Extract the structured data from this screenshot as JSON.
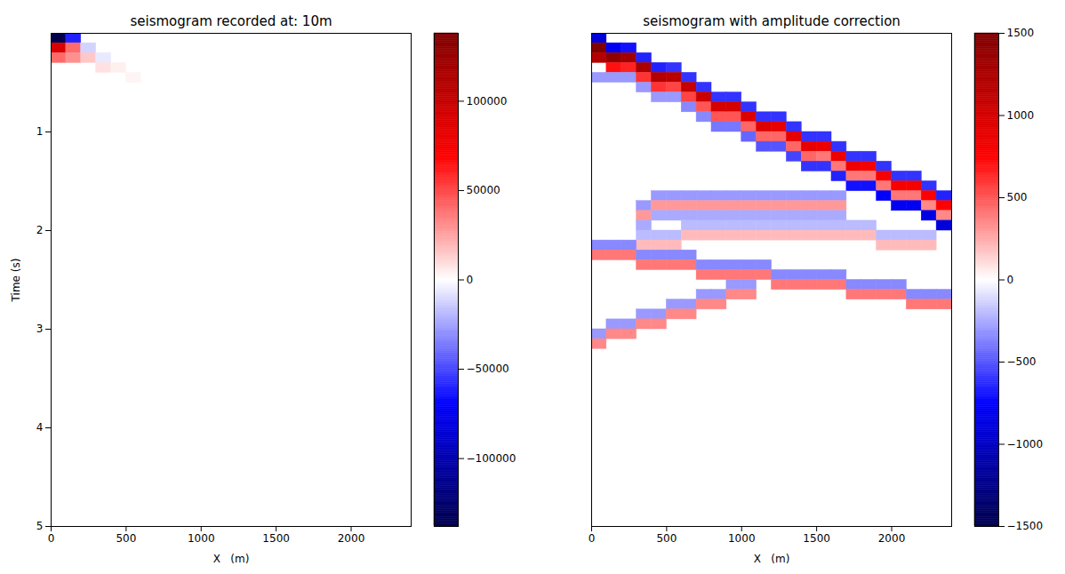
{
  "chart_data": [
    {
      "type": "heatmap",
      "title": "seismogram recorded at: 10m",
      "xlabel": "X   (m)",
      "ylabel": "Time (s)",
      "xlim": [
        0,
        2400
      ],
      "xticks": [
        0,
        500,
        1000,
        1500,
        2000
      ],
      "ylim": [
        0,
        5
      ],
      "yticks": [
        1,
        2,
        3,
        4,
        5
      ],
      "cell_width": 100,
      "cell_height": 0.1,
      "cells": [
        [
          0,
          0.0,
          -138000
        ],
        [
          0,
          0.1,
          90000
        ],
        [
          0,
          0.2,
          40000
        ],
        [
          100,
          0.0,
          -60000
        ],
        [
          100,
          0.1,
          40000
        ],
        [
          100,
          0.2,
          30000
        ],
        [
          200,
          0.1,
          -12000
        ],
        [
          200,
          0.2,
          15000
        ],
        [
          300,
          0.2,
          -6000
        ],
        [
          300,
          0.3,
          8000
        ],
        [
          400,
          0.3,
          4000
        ],
        [
          500,
          0.4,
          3000
        ]
      ],
      "colorbar": {
        "range": [
          -138000,
          138000
        ],
        "ticks": [
          -100000,
          -50000,
          0,
          50000,
          100000
        ]
      }
    },
    {
      "type": "heatmap",
      "title": "seismogram with amplitude correction",
      "xlabel": "X   (m)",
      "xlim": [
        0,
        2400
      ],
      "xticks": [
        0,
        500,
        1000,
        1500,
        2000
      ],
      "ylim": [
        0,
        5
      ],
      "tick_labels": "x",
      "cell_width": 100,
      "cell_height": 0.1,
      "cells": [
        [
          0,
          0.0,
          -900
        ],
        [
          0,
          0.1,
          1500
        ],
        [
          0,
          0.2,
          1200
        ],
        [
          0,
          0.4,
          -300
        ],
        [
          100,
          0.1,
          -800
        ],
        [
          100,
          0.2,
          1400
        ],
        [
          100,
          0.3,
          700
        ],
        [
          100,
          0.4,
          -300
        ],
        [
          200,
          0.1,
          -700
        ],
        [
          200,
          0.2,
          1300
        ],
        [
          200,
          0.3,
          650
        ],
        [
          200,
          0.4,
          -300
        ],
        [
          300,
          0.2,
          -650
        ],
        [
          300,
          0.3,
          1250
        ],
        [
          300,
          0.4,
          600
        ],
        [
          300,
          0.5,
          -300
        ],
        [
          400,
          0.3,
          -650
        ],
        [
          400,
          0.4,
          1200
        ],
        [
          400,
          0.5,
          600
        ],
        [
          400,
          0.6,
          -300
        ],
        [
          500,
          0.3,
          -600
        ],
        [
          500,
          0.4,
          1150
        ],
        [
          500,
          0.5,
          550
        ],
        [
          500,
          0.6,
          -300
        ],
        [
          600,
          0.4,
          -600
        ],
        [
          600,
          0.5,
          1100
        ],
        [
          600,
          0.6,
          550
        ],
        [
          600,
          0.7,
          -350
        ],
        [
          700,
          0.5,
          -600
        ],
        [
          700,
          0.6,
          1050
        ],
        [
          700,
          0.7,
          500
        ],
        [
          700,
          0.8,
          -350
        ],
        [
          800,
          0.6,
          -600
        ],
        [
          800,
          0.7,
          1000
        ],
        [
          800,
          0.8,
          500
        ],
        [
          800,
          0.9,
          -400
        ],
        [
          900,
          0.6,
          -600
        ],
        [
          900,
          0.7,
          1000
        ],
        [
          900,
          0.8,
          500
        ],
        [
          900,
          0.9,
          -400
        ],
        [
          1000,
          0.7,
          -600
        ],
        [
          1000,
          0.8,
          950
        ],
        [
          1000,
          0.9,
          450
        ],
        [
          1000,
          1.0,
          -450
        ],
        [
          1100,
          0.8,
          -600
        ],
        [
          1100,
          0.9,
          950
        ],
        [
          1100,
          1.0,
          450
        ],
        [
          1100,
          1.1,
          -500
        ],
        [
          1200,
          0.8,
          -600
        ],
        [
          1200,
          0.9,
          900
        ],
        [
          1200,
          1.0,
          450
        ],
        [
          1200,
          1.1,
          -500
        ],
        [
          1300,
          0.9,
          -600
        ],
        [
          1300,
          1.0,
          900
        ],
        [
          1300,
          1.1,
          450
        ],
        [
          1300,
          1.2,
          -550
        ],
        [
          1400,
          1.0,
          -600
        ],
        [
          1400,
          1.1,
          900
        ],
        [
          1400,
          1.2,
          450
        ],
        [
          1400,
          1.3,
          -600
        ],
        [
          1500,
          1.0,
          -600
        ],
        [
          1500,
          1.1,
          850
        ],
        [
          1500,
          1.2,
          400
        ],
        [
          1500,
          1.3,
          -600
        ],
        [
          1600,
          1.1,
          -600
        ],
        [
          1600,
          1.2,
          850
        ],
        [
          1600,
          1.3,
          400
        ],
        [
          1600,
          1.4,
          -650
        ],
        [
          1700,
          1.2,
          -600
        ],
        [
          1700,
          1.3,
          850
        ],
        [
          1700,
          1.4,
          400
        ],
        [
          1700,
          1.5,
          -700
        ],
        [
          1800,
          1.2,
          -600
        ],
        [
          1800,
          1.3,
          800
        ],
        [
          1800,
          1.4,
          400
        ],
        [
          1800,
          1.5,
          -700
        ],
        [
          1900,
          1.3,
          -600
        ],
        [
          1900,
          1.4,
          800
        ],
        [
          1900,
          1.5,
          400
        ],
        [
          1900,
          1.6,
          -750
        ],
        [
          2000,
          1.4,
          -600
        ],
        [
          2000,
          1.5,
          800
        ],
        [
          2000,
          1.6,
          400
        ],
        [
          2000,
          1.7,
          -800
        ],
        [
          2100,
          1.4,
          -600
        ],
        [
          2100,
          1.5,
          800
        ],
        [
          2100,
          1.6,
          400
        ],
        [
          2100,
          1.7,
          -800
        ],
        [
          2200,
          1.5,
          -600
        ],
        [
          2200,
          1.6,
          750
        ],
        [
          2200,
          1.7,
          350
        ],
        [
          2200,
          1.8,
          -850
        ],
        [
          2300,
          1.6,
          -650
        ],
        [
          2300,
          1.7,
          750
        ],
        [
          2300,
          1.8,
          350
        ],
        [
          2300,
          1.9,
          -900
        ],
        [
          300,
          1.7,
          -300
        ],
        [
          300,
          1.8,
          300
        ],
        [
          300,
          1.9,
          -250
        ],
        [
          400,
          1.6,
          -300
        ],
        [
          400,
          1.7,
          300
        ],
        [
          400,
          1.8,
          -250
        ],
        [
          500,
          1.6,
          -300
        ],
        [
          500,
          1.7,
          300
        ],
        [
          500,
          1.8,
          -250
        ],
        [
          600,
          1.6,
          -300
        ],
        [
          600,
          1.7,
          300
        ],
        [
          600,
          1.8,
          -250
        ],
        [
          700,
          1.6,
          -300
        ],
        [
          700,
          1.7,
          300
        ],
        [
          700,
          1.8,
          -250
        ],
        [
          800,
          1.6,
          -300
        ],
        [
          800,
          1.7,
          300
        ],
        [
          800,
          1.8,
          -250
        ],
        [
          900,
          1.6,
          -300
        ],
        [
          900,
          1.7,
          300
        ],
        [
          900,
          1.8,
          -250
        ],
        [
          1000,
          1.6,
          -300
        ],
        [
          1000,
          1.7,
          300
        ],
        [
          1000,
          1.8,
          -250
        ],
        [
          1100,
          1.6,
          -300
        ],
        [
          1100,
          1.7,
          300
        ],
        [
          1100,
          1.8,
          -250
        ],
        [
          1200,
          1.6,
          -300
        ],
        [
          1200,
          1.7,
          300
        ],
        [
          1200,
          1.8,
          -250
        ],
        [
          1300,
          1.6,
          -300
        ],
        [
          1300,
          1.7,
          300
        ],
        [
          1300,
          1.8,
          -250
        ],
        [
          1400,
          1.6,
          -300
        ],
        [
          1400,
          1.7,
          300
        ],
        [
          1400,
          1.8,
          -250
        ],
        [
          1500,
          1.6,
          -300
        ],
        [
          1500,
          1.7,
          300
        ],
        [
          1500,
          1.8,
          -250
        ],
        [
          1600,
          1.6,
          -300
        ],
        [
          1600,
          1.7,
          300
        ],
        [
          1600,
          1.8,
          -250
        ],
        [
          300,
          2.0,
          -200
        ],
        [
          300,
          2.1,
          200
        ],
        [
          400,
          2.0,
          -200
        ],
        [
          400,
          2.1,
          200
        ],
        [
          500,
          2.0,
          -200
        ],
        [
          500,
          2.1,
          200
        ],
        [
          600,
          1.9,
          -200
        ],
        [
          600,
          2.0,
          200
        ],
        [
          700,
          1.9,
          -200
        ],
        [
          700,
          2.0,
          200
        ],
        [
          800,
          1.9,
          -200
        ],
        [
          800,
          2.0,
          200
        ],
        [
          900,
          1.9,
          -200
        ],
        [
          900,
          2.0,
          200
        ],
        [
          1000,
          1.9,
          -200
        ],
        [
          1000,
          2.0,
          200
        ],
        [
          1100,
          1.9,
          -200
        ],
        [
          1100,
          2.0,
          200
        ],
        [
          1200,
          1.9,
          -200
        ],
        [
          1200,
          2.0,
          200
        ],
        [
          1300,
          1.9,
          -200
        ],
        [
          1300,
          2.0,
          200
        ],
        [
          1400,
          1.9,
          -200
        ],
        [
          1400,
          2.0,
          200
        ],
        [
          1500,
          1.9,
          -200
        ],
        [
          1500,
          2.0,
          200
        ],
        [
          1600,
          1.9,
          -200
        ],
        [
          1600,
          2.0,
          200
        ],
        [
          1700,
          1.9,
          -200
        ],
        [
          1700,
          2.0,
          200
        ],
        [
          1800,
          1.9,
          -200
        ],
        [
          1800,
          2.0,
          200
        ],
        [
          1900,
          2.0,
          -200
        ],
        [
          1900,
          2.1,
          200
        ],
        [
          2000,
          2.0,
          -200
        ],
        [
          2000,
          2.1,
          200
        ],
        [
          2100,
          2.0,
          -200
        ],
        [
          2100,
          2.1,
          200
        ],
        [
          2200,
          2.0,
          -200
        ],
        [
          2200,
          2.1,
          200
        ],
        [
          0,
          2.1,
          -350
        ],
        [
          0,
          2.2,
          400
        ],
        [
          100,
          2.1,
          -350
        ],
        [
          100,
          2.2,
          400
        ],
        [
          200,
          2.1,
          -350
        ],
        [
          200,
          2.2,
          400
        ],
        [
          300,
          2.2,
          -350
        ],
        [
          300,
          2.3,
          400
        ],
        [
          400,
          2.2,
          -350
        ],
        [
          400,
          2.3,
          400
        ],
        [
          500,
          2.2,
          -350
        ],
        [
          500,
          2.3,
          400
        ],
        [
          600,
          2.2,
          -350
        ],
        [
          600,
          2.3,
          400
        ],
        [
          700,
          2.3,
          -350
        ],
        [
          700,
          2.4,
          400
        ],
        [
          800,
          2.3,
          -350
        ],
        [
          800,
          2.4,
          400
        ],
        [
          900,
          2.3,
          -350
        ],
        [
          900,
          2.4,
          400
        ],
        [
          1000,
          2.3,
          -350
        ],
        [
          1000,
          2.4,
          400
        ],
        [
          1100,
          2.3,
          -350
        ],
        [
          1100,
          2.4,
          400
        ],
        [
          1200,
          2.4,
          -350
        ],
        [
          1200,
          2.5,
          400
        ],
        [
          1300,
          2.4,
          -350
        ],
        [
          1300,
          2.5,
          400
        ],
        [
          1400,
          2.4,
          -350
        ],
        [
          1400,
          2.5,
          400
        ],
        [
          1500,
          2.4,
          -350
        ],
        [
          1500,
          2.5,
          400
        ],
        [
          1600,
          2.4,
          -350
        ],
        [
          1600,
          2.5,
          400
        ],
        [
          1700,
          2.5,
          -350
        ],
        [
          1700,
          2.6,
          400
        ],
        [
          1800,
          2.5,
          -350
        ],
        [
          1800,
          2.6,
          400
        ],
        [
          1900,
          2.5,
          -350
        ],
        [
          1900,
          2.6,
          400
        ],
        [
          2000,
          2.5,
          -350
        ],
        [
          2000,
          2.6,
          400
        ],
        [
          2100,
          2.6,
          -350
        ],
        [
          2100,
          2.7,
          400
        ],
        [
          2200,
          2.6,
          -350
        ],
        [
          2200,
          2.7,
          400
        ],
        [
          2300,
          2.6,
          -350
        ],
        [
          2300,
          2.7,
          400
        ],
        [
          0,
          3.0,
          -300
        ],
        [
          0,
          3.1,
          350
        ],
        [
          100,
          2.9,
          -300
        ],
        [
          100,
          3.0,
          350
        ],
        [
          200,
          2.9,
          -300
        ],
        [
          200,
          3.0,
          350
        ],
        [
          300,
          2.8,
          -300
        ],
        [
          300,
          2.9,
          350
        ],
        [
          400,
          2.8,
          -300
        ],
        [
          400,
          2.9,
          350
        ],
        [
          500,
          2.7,
          -300
        ],
        [
          500,
          2.8,
          350
        ],
        [
          600,
          2.7,
          -300
        ],
        [
          600,
          2.8,
          350
        ],
        [
          700,
          2.6,
          -300
        ],
        [
          700,
          2.7,
          350
        ],
        [
          800,
          2.6,
          -300
        ],
        [
          800,
          2.7,
          350
        ],
        [
          900,
          2.5,
          -300
        ],
        [
          900,
          2.6,
          350
        ],
        [
          1000,
          2.5,
          -300
        ],
        [
          1000,
          2.6,
          350
        ]
      ],
      "colorbar": {
        "range": [
          -1500,
          1500
        ],
        "ticks": [
          -1500,
          -1000,
          -500,
          0,
          500,
          1000,
          1500
        ]
      }
    }
  ]
}
